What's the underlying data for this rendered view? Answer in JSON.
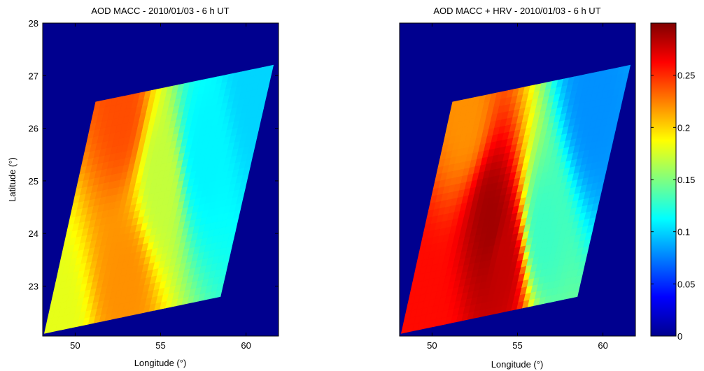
{
  "chart_data": [
    {
      "type": "heatmap",
      "title": "AOD MACC - 2010/01/03 - 6 h UT",
      "xlabel": "Longitude (°)",
      "ylabel": "Latitude (°)",
      "xlim": [
        48.1,
        61.9
      ],
      "ylim": [
        22.05,
        28.0
      ],
      "xticks": [
        "50",
        "55",
        "60"
      ],
      "yticks": [
        "23",
        "24",
        "25",
        "26",
        "27",
        "28"
      ],
      "xtick_values": [
        50,
        55,
        60
      ],
      "ytick_values": [
        23,
        24,
        25,
        26,
        27,
        28
      ],
      "colormap": "jet",
      "background_value": 0,
      "swath_corners": [
        [
          48.2,
          22.1
        ],
        [
          51.2,
          26.5
        ],
        [
          61.6,
          27.2
        ],
        [
          58.5,
          22.8
        ]
      ],
      "field_samples": [
        {
          "lon": 49.0,
          "lat": 22.3,
          "value": 0.18
        },
        {
          "lon": 52.8,
          "lat": 26.4,
          "value": 0.24
        },
        {
          "lon": 53.0,
          "lat": 23.0,
          "value": 0.22
        },
        {
          "lon": 55.0,
          "lat": 25.0,
          "value": 0.17
        },
        {
          "lon": 57.5,
          "lat": 25.5,
          "value": 0.11
        },
        {
          "lon": 60.5,
          "lat": 26.8,
          "value": 0.1
        }
      ]
    },
    {
      "type": "heatmap",
      "title": "AOD MACC + HRV - 2010/01/03 - 6 h UT",
      "xlabel": "Longitude (°)",
      "ylabel": "",
      "xlim": [
        48.1,
        61.9
      ],
      "ylim": [
        22.05,
        28.0
      ],
      "xticks": [
        "50",
        "55",
        "60"
      ],
      "xtick_values": [
        50,
        55,
        60
      ],
      "colormap": "jet",
      "background_value": 0,
      "swath_corners": [
        [
          48.2,
          22.1
        ],
        [
          51.2,
          26.5
        ],
        [
          61.6,
          27.2
        ],
        [
          58.5,
          22.8
        ]
      ],
      "field_samples": [
        {
          "lon": 49.5,
          "lat": 22.3,
          "value": 0.26
        },
        {
          "lon": 53.5,
          "lat": 24.2,
          "value": 0.29
        },
        {
          "lon": 54.2,
          "lat": 23.6,
          "value": 0.28
        },
        {
          "lon": 52.0,
          "lat": 26.3,
          "value": 0.22
        },
        {
          "lon": 56.5,
          "lat": 24.0,
          "value": 0.13
        },
        {
          "lon": 59.5,
          "lat": 26.5,
          "value": 0.08
        }
      ]
    }
  ],
  "colorbar": {
    "min": 0,
    "max": 0.3,
    "ticks": [
      0,
      0.05,
      0.1,
      0.15,
      0.2,
      0.25
    ],
    "tick_labels": [
      "0",
      "0.05",
      "0.1",
      "0.15",
      "0.2",
      "0.25"
    ]
  },
  "colors": {
    "background": "#00008f",
    "axis": "#000000"
  }
}
